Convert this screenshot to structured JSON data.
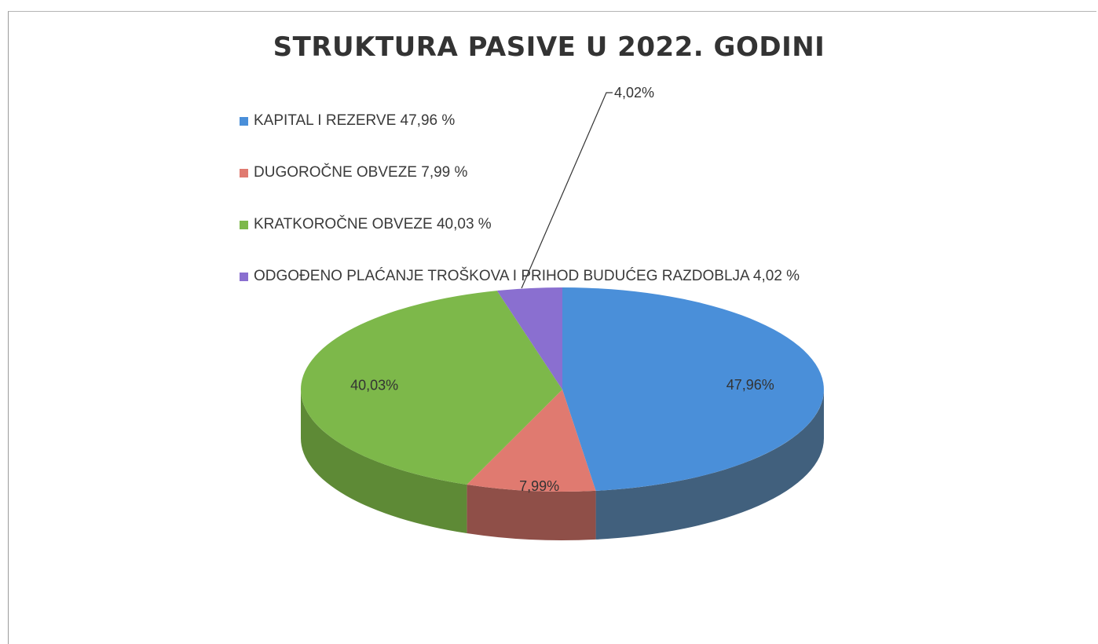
{
  "chart_data": {
    "type": "pie",
    "title": "STRUKTURA PASIVE U 2022. GODINI",
    "legend_position": "top-left",
    "slices": [
      {
        "legend": "KAPITAL I REZERVE 47,96 %",
        "value": 47.96,
        "label": "47,96%",
        "color": "#4a8fd9",
        "side": "#41607d"
      },
      {
        "legend": "DUGOROČNE OBVEZE 7,99 %",
        "value": 7.99,
        "label": "7,99%",
        "color": "#e07a70",
        "side": "#8f4f48"
      },
      {
        "legend": "KRATKOROČNE OBVEZE 40,03 %",
        "value": 40.03,
        "label": "40,03%",
        "color": "#7db84a",
        "side": "#5e8a36"
      },
      {
        "legend": "ODGOĐENO PLAĆANJE TROŠKOVA I PRIHOD BUDUĆEG RAZDOBLJA 4,02 %",
        "value": 4.02,
        "label": "4,02%",
        "color": "#8a6fd0",
        "side": "#5f4c94"
      }
    ]
  }
}
